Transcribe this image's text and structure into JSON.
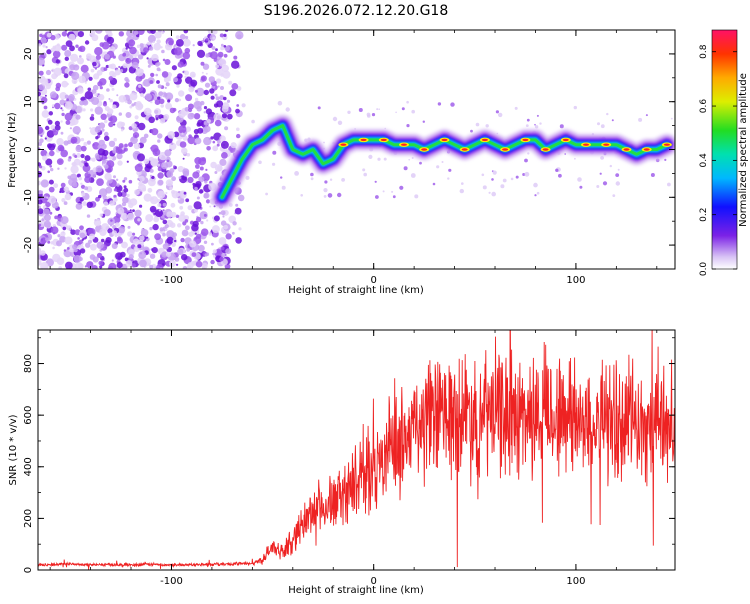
{
  "title": "S196.2026.072.12.20.G18",
  "chart_data": [
    {
      "type": "heatmap",
      "xlabel": "Height of straight line (km)",
      "ylabel": "Frequency (Hz)",
      "xlim": [
        -166,
        149
      ],
      "ylim": [
        -25,
        25
      ],
      "xticks": [
        -100,
        0,
        100
      ],
      "yticks": [
        -20,
        -10,
        0,
        10,
        20
      ],
      "ridge": [
        [
          -75,
          -10
        ],
        [
          -70,
          -6
        ],
        [
          -65,
          -2
        ],
        [
          -60,
          1
        ],
        [
          -55,
          2
        ],
        [
          -50,
          4
        ],
        [
          -45,
          5
        ],
        [
          -40,
          0
        ],
        [
          -35,
          -1
        ],
        [
          -30,
          0
        ],
        [
          -25,
          -3
        ],
        [
          -20,
          -2
        ],
        [
          -15,
          1
        ],
        [
          -10,
          2
        ],
        [
          -5,
          2
        ],
        [
          0,
          2
        ],
        [
          5,
          2
        ],
        [
          10,
          1
        ],
        [
          15,
          1
        ],
        [
          20,
          1
        ],
        [
          25,
          0
        ],
        [
          30,
          1
        ],
        [
          35,
          2
        ],
        [
          40,
          1
        ],
        [
          45,
          0
        ],
        [
          50,
          1
        ],
        [
          55,
          2
        ],
        [
          60,
          1
        ],
        [
          65,
          0
        ],
        [
          70,
          1
        ],
        [
          75,
          2
        ],
        [
          80,
          2
        ],
        [
          85,
          0
        ],
        [
          90,
          1
        ],
        [
          95,
          2
        ],
        [
          100,
          1
        ],
        [
          105,
          1
        ],
        [
          110,
          1
        ],
        [
          115,
          1
        ],
        [
          120,
          1
        ],
        [
          125,
          0
        ],
        [
          130,
          -1
        ],
        [
          135,
          0
        ],
        [
          140,
          0
        ],
        [
          145,
          1
        ]
      ],
      "colorbar": {
        "label": "Normalized spectral amplitude",
        "range": [
          0,
          0.88
        ],
        "ticks": [
          "0.0",
          "0.2",
          "0.4",
          "0.6",
          "0.8"
        ]
      }
    },
    {
      "type": "line",
      "xlabel": "Height of straight line (km)",
      "ylabel": "SNR (10 * v/v)",
      "xlim": [
        -166,
        149
      ],
      "ylim": [
        0,
        930
      ],
      "xticks": [
        -100,
        0,
        100
      ],
      "yticks": [
        0,
        200,
        400,
        600,
        800
      ],
      "color": "#ee2222",
      "series": [
        {
          "name": "SNR",
          "x": [
            -166,
            -150,
            -140,
            -130,
            -120,
            -110,
            -100,
            -90,
            -80,
            -70,
            -60,
            -55,
            -50,
            -45,
            -40,
            -35,
            -30,
            -25,
            -20,
            -15,
            -10,
            -5,
            0,
            5,
            10,
            15,
            20,
            25,
            30,
            35,
            40,
            45,
            50,
            55,
            60,
            65,
            70,
            75,
            80,
            85,
            90,
            95,
            100,
            105,
            110,
            115,
            120,
            125,
            130,
            135,
            140,
            145,
            149
          ],
          "y": [
            20,
            22,
            20,
            21,
            20,
            22,
            20,
            21,
            22,
            23,
            25,
            40,
            90,
            70,
            120,
            180,
            230,
            250,
            260,
            300,
            330,
            370,
            400,
            440,
            480,
            510,
            540,
            570,
            590,
            600,
            600,
            610,
            620,
            600,
            610,
            610,
            600,
            600,
            590,
            600,
            600,
            590,
            580,
            580,
            580,
            580,
            570,
            580,
            580,
            570,
            580,
            570,
            560
          ]
        }
      ]
    }
  ]
}
